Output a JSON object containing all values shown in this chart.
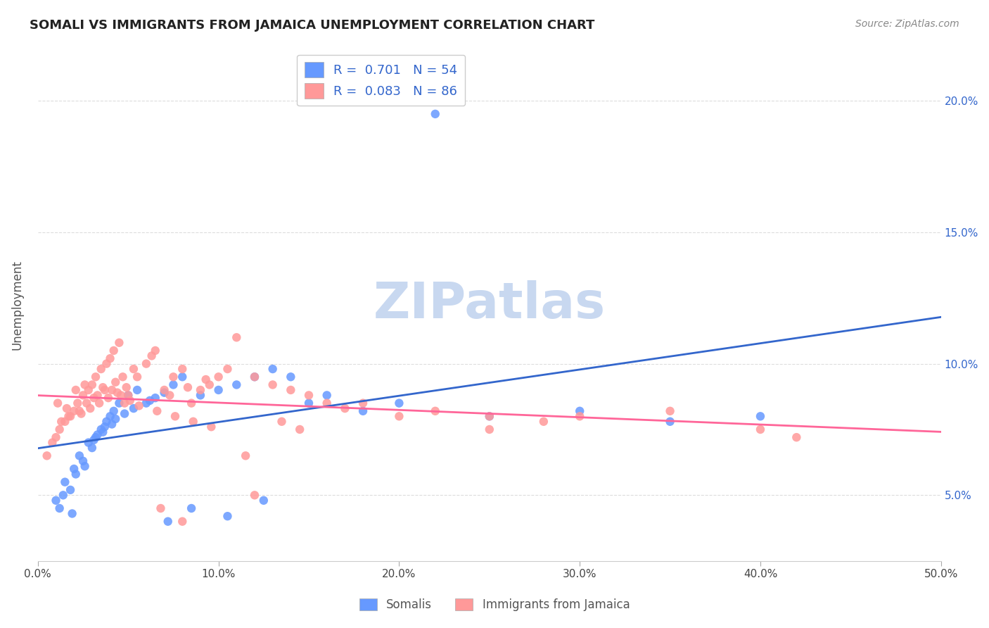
{
  "title": "SOMALI VS IMMIGRANTS FROM JAMAICA UNEMPLOYMENT CORRELATION CHART",
  "source": "Source: ZipAtlas.com",
  "ylabel": "Unemployment",
  "ytick_values": [
    5.0,
    10.0,
    15.0,
    20.0
  ],
  "xlim": [
    0.0,
    50.0
  ],
  "ylim": [
    2.5,
    22.0
  ],
  "somali_R": 0.701,
  "somali_N": 54,
  "jamaica_R": 0.083,
  "jamaica_N": 86,
  "somali_color": "#6699ff",
  "jamaica_color": "#ff9999",
  "somali_line_color": "#3366cc",
  "jamaica_line_color": "#ff6699",
  "background_color": "#ffffff",
  "watermark": "ZIPatlas",
  "watermark_color": "#c8d8f0",
  "legend_label_somali": "Somalis",
  "legend_label_jamaica": "Immigrants from Jamaica",
  "somali_scatter_x": [
    1.2,
    1.8,
    2.1,
    2.5,
    3.0,
    3.2,
    3.5,
    3.8,
    4.0,
    4.2,
    4.5,
    5.0,
    5.5,
    6.0,
    6.5,
    7.0,
    7.5,
    8.0,
    9.0,
    10.0,
    11.0,
    12.0,
    13.0,
    14.0,
    15.0,
    16.0,
    18.0,
    20.0,
    22.0,
    25.0,
    30.0,
    35.0,
    40.0,
    1.0,
    1.5,
    2.0,
    2.3,
    2.8,
    3.3,
    3.7,
    4.3,
    4.8,
    5.3,
    6.2,
    7.2,
    8.5,
    10.5,
    12.5,
    1.4,
    1.9,
    2.6,
    3.1,
    3.6,
    4.1
  ],
  "somali_scatter_y": [
    4.5,
    5.2,
    5.8,
    6.3,
    6.8,
    7.2,
    7.5,
    7.8,
    8.0,
    8.2,
    8.5,
    8.8,
    9.0,
    8.5,
    8.7,
    8.9,
    9.2,
    9.5,
    8.8,
    9.0,
    9.2,
    9.5,
    9.8,
    9.5,
    8.5,
    8.8,
    8.2,
    8.5,
    19.5,
    8.0,
    8.2,
    7.8,
    8.0,
    4.8,
    5.5,
    6.0,
    6.5,
    7.0,
    7.3,
    7.6,
    7.9,
    8.1,
    8.3,
    8.6,
    4.0,
    4.5,
    4.2,
    4.8,
    5.0,
    4.3,
    6.1,
    7.1,
    7.4,
    7.7
  ],
  "jamaica_scatter_x": [
    0.5,
    0.8,
    1.0,
    1.2,
    1.5,
    1.8,
    2.0,
    2.2,
    2.5,
    2.8,
    3.0,
    3.2,
    3.5,
    3.8,
    4.0,
    4.2,
    4.5,
    4.8,
    5.0,
    5.5,
    6.0,
    6.5,
    7.0,
    7.5,
    8.0,
    8.5,
    9.0,
    9.5,
    10.0,
    10.5,
    11.0,
    12.0,
    13.0,
    14.0,
    15.0,
    16.0,
    17.0,
    18.0,
    20.0,
    22.0,
    25.0,
    28.0,
    30.0,
    35.0,
    40.0,
    1.3,
    1.7,
    2.3,
    2.7,
    3.3,
    3.7,
    4.3,
    4.7,
    5.3,
    6.3,
    7.3,
    8.3,
    9.3,
    11.5,
    13.5,
    1.1,
    1.6,
    2.1,
    2.6,
    3.1,
    3.6,
    4.1,
    4.6,
    5.1,
    5.6,
    6.6,
    7.6,
    8.6,
    9.6,
    12.0,
    14.5,
    2.4,
    2.9,
    3.4,
    3.9,
    4.4,
    4.9,
    25.0,
    42.0,
    6.8,
    8.0
  ],
  "jamaica_scatter_y": [
    6.5,
    7.0,
    7.2,
    7.5,
    7.8,
    8.0,
    8.2,
    8.5,
    8.8,
    9.0,
    9.2,
    9.5,
    9.8,
    10.0,
    10.2,
    10.5,
    10.8,
    8.5,
    8.8,
    9.5,
    10.0,
    10.5,
    9.0,
    9.5,
    9.8,
    8.5,
    9.0,
    9.2,
    9.5,
    9.8,
    11.0,
    9.5,
    9.2,
    9.0,
    8.8,
    8.5,
    8.3,
    8.5,
    8.0,
    8.2,
    8.0,
    7.8,
    8.0,
    8.2,
    7.5,
    7.8,
    8.0,
    8.2,
    8.5,
    8.8,
    9.0,
    9.3,
    9.5,
    9.8,
    10.3,
    8.8,
    9.1,
    9.4,
    6.5,
    7.8,
    8.5,
    8.3,
    9.0,
    9.2,
    8.7,
    9.1,
    9.0,
    8.8,
    8.6,
    8.4,
    8.2,
    8.0,
    7.8,
    7.6,
    5.0,
    7.5,
    8.1,
    8.3,
    8.5,
    8.7,
    8.9,
    9.1,
    7.5,
    7.2,
    4.5,
    4.0
  ]
}
